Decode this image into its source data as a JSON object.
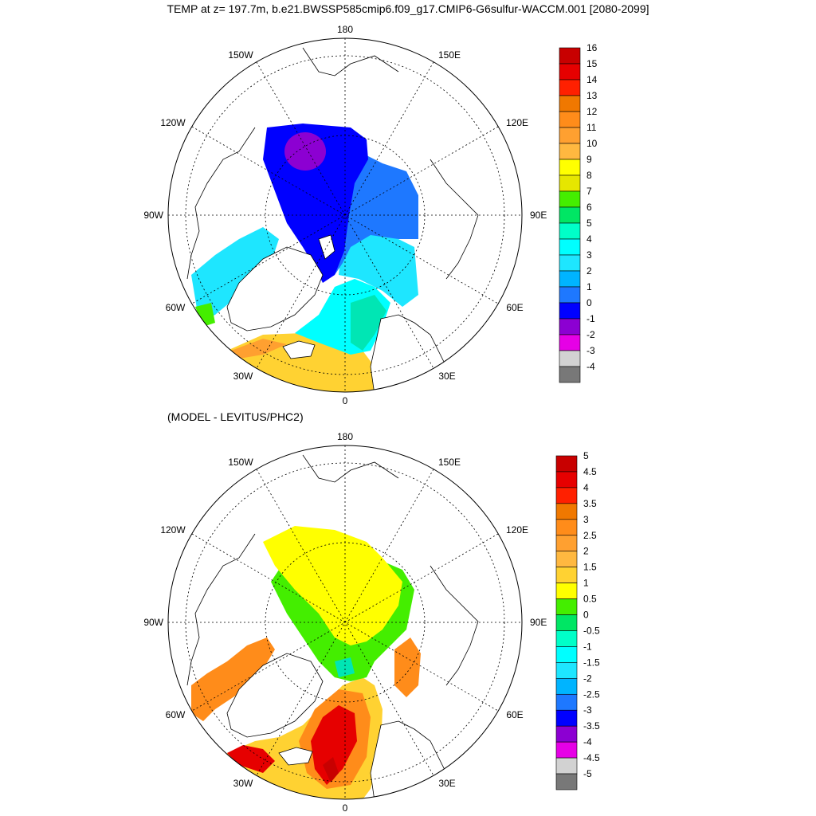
{
  "title": "TEMP at z= 197.7m, b.e21.BWSSP585cmip6.f09_g17.CMIP6-G6sulfur-WACCM.001 [2080-2099]",
  "subtitle": "(MODEL - LEVITUS/PHC2)",
  "longitude_labels": {
    "lon_180": "180",
    "lon_150w": "150W",
    "lon_150e": "150E",
    "lon_120w": "120W",
    "lon_120e": "120E",
    "lon_90w": "90W",
    "lon_90e": "90E",
    "lon_60w": "60W",
    "lon_60e": "60E",
    "lon_30w": "30W",
    "lon_30e": "30E",
    "lon_0": "0"
  },
  "top_colorbar": {
    "labels": [
      "16",
      "15",
      "14",
      "13",
      "12",
      "11",
      "10",
      "9",
      "8",
      "7",
      "6",
      "5",
      "4",
      "3",
      "2",
      "1",
      "0",
      "-1",
      "-2",
      "-3",
      "-4"
    ],
    "colors": [
      "#c80000",
      "#e60000",
      "#ff2000",
      "#f07800",
      "#ff8c1a",
      "#ffa030",
      "#ffb840",
      "#ffff00",
      "#e6e600",
      "#44ee00",
      "#00e664",
      "#00ffc8",
      "#00ffff",
      "#1ee6ff",
      "#00b4ff",
      "#1e78ff",
      "#0000ff",
      "#8c00d2",
      "#e600e6",
      "#d2d2d2",
      "#787878"
    ]
  },
  "bottom_colorbar": {
    "labels": [
      "5",
      "4.5",
      "4",
      "3.5",
      "3",
      "2.5",
      "2",
      "1.5",
      "1",
      "0.5",
      "0",
      "-0.5",
      "-1",
      "-1.5",
      "-2",
      "-2.5",
      "-3",
      "-3.5",
      "-4",
      "-4.5",
      "-5"
    ],
    "colors": [
      "#c80000",
      "#e60000",
      "#ff2000",
      "#f07800",
      "#ff8c1a",
      "#ffa030",
      "#ffb840",
      "#ffd232",
      "#ffff00",
      "#44ee00",
      "#00e664",
      "#00ffc8",
      "#00ffff",
      "#1ee6ff",
      "#00b4ff",
      "#1e78ff",
      "#0000ff",
      "#8c00d2",
      "#e600e6",
      "#d2d2d2",
      "#787878"
    ]
  }
}
